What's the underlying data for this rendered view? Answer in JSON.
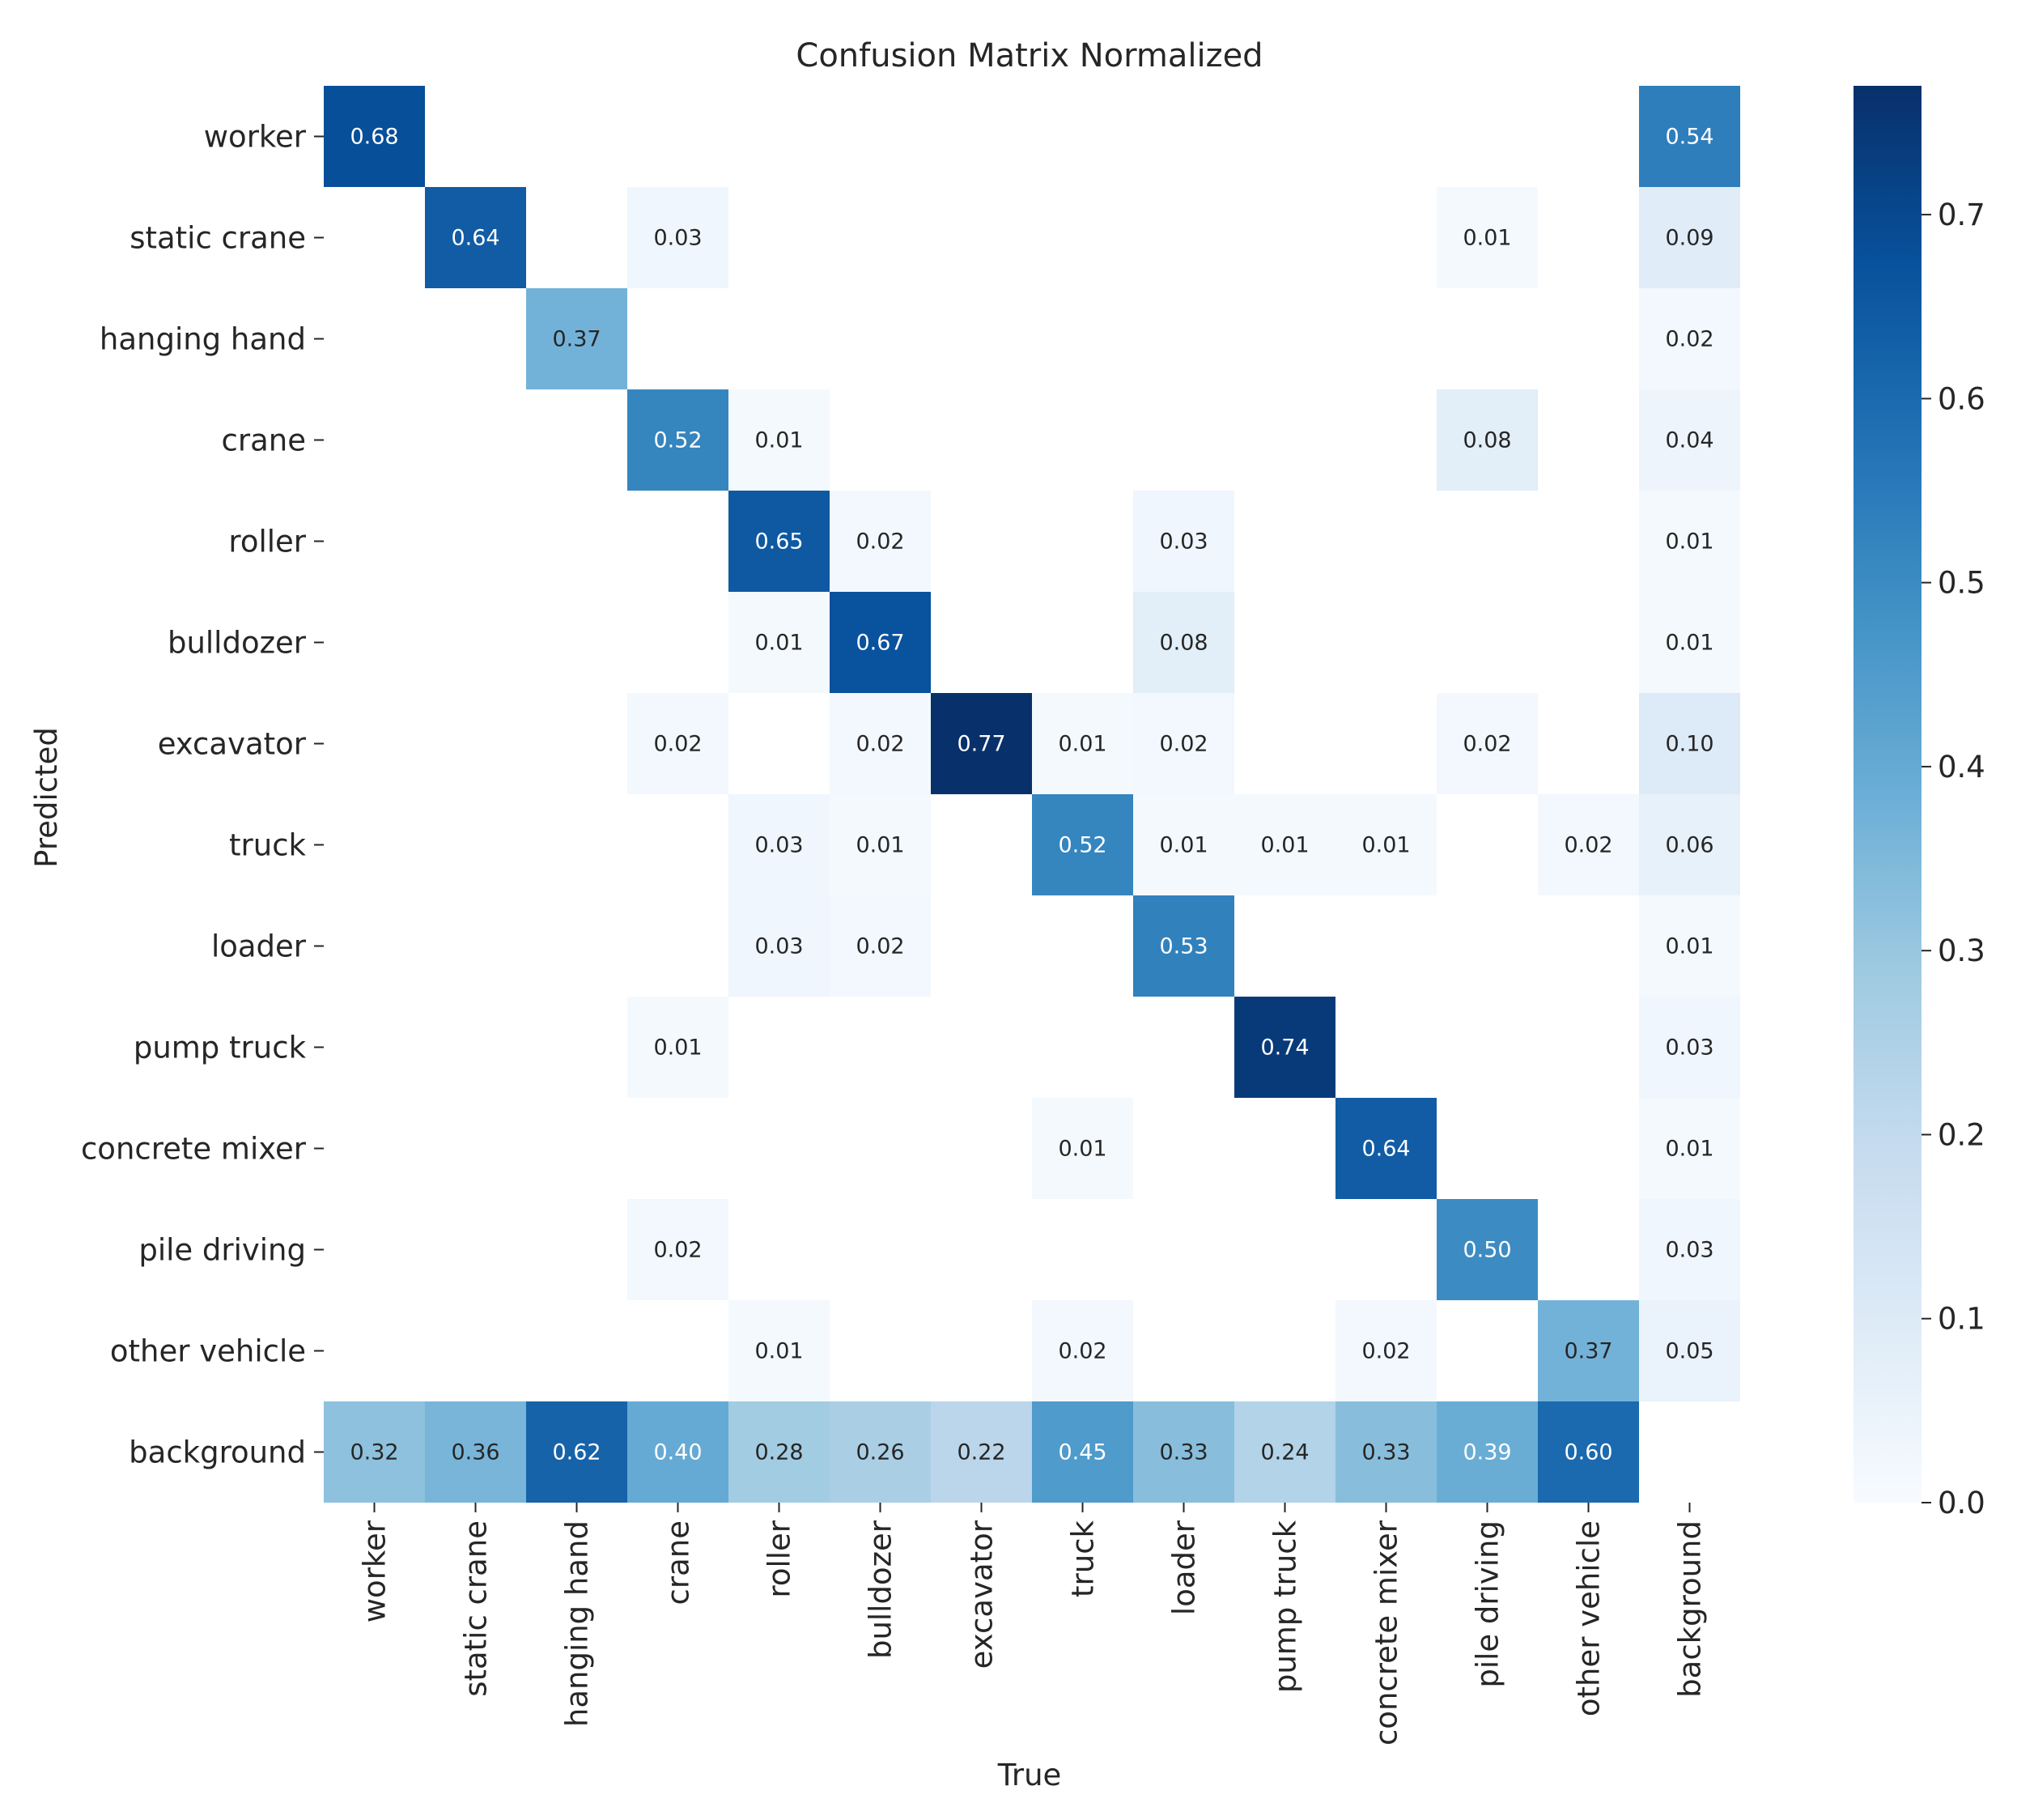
{
  "chart_data": {
    "type": "heatmap",
    "title": "Confusion Matrix Normalized",
    "xlabel": "True",
    "ylabel": "Predicted",
    "x_categories": [
      "worker",
      "static crane",
      "hanging hand",
      "crane",
      "roller",
      "bulldozer",
      "excavator",
      "truck",
      "loader",
      "pump truck",
      "concrete mixer",
      "pile driving",
      "other vehicle",
      "background"
    ],
    "y_categories": [
      "worker",
      "static crane",
      "hanging hand",
      "crane",
      "roller",
      "bulldozer",
      "excavator",
      "truck",
      "loader",
      "pump truck",
      "concrete mixer",
      "pile driving",
      "other vehicle",
      "background"
    ],
    "values": [
      [
        0.68,
        null,
        null,
        null,
        null,
        null,
        null,
        null,
        null,
        null,
        null,
        null,
        null,
        0.54
      ],
      [
        null,
        0.64,
        null,
        0.03,
        null,
        null,
        null,
        null,
        null,
        null,
        null,
        0.01,
        null,
        0.09
      ],
      [
        null,
        null,
        0.37,
        null,
        null,
        null,
        null,
        null,
        null,
        null,
        null,
        null,
        null,
        0.02
      ],
      [
        null,
        null,
        null,
        0.52,
        0.01,
        null,
        null,
        null,
        null,
        null,
        null,
        0.08,
        null,
        0.04
      ],
      [
        null,
        null,
        null,
        null,
        0.65,
        0.02,
        null,
        null,
        0.03,
        null,
        null,
        null,
        null,
        0.01
      ],
      [
        null,
        null,
        null,
        null,
        0.01,
        0.67,
        null,
        null,
        0.08,
        null,
        null,
        null,
        null,
        0.01
      ],
      [
        null,
        null,
        null,
        0.02,
        null,
        0.02,
        0.77,
        0.01,
        0.02,
        null,
        null,
        0.02,
        null,
        0.1
      ],
      [
        null,
        null,
        null,
        null,
        0.03,
        0.01,
        null,
        0.52,
        0.01,
        0.01,
        0.01,
        null,
        0.02,
        0.06
      ],
      [
        null,
        null,
        null,
        null,
        0.03,
        0.02,
        null,
        null,
        0.53,
        null,
        null,
        null,
        null,
        0.01
      ],
      [
        null,
        null,
        null,
        0.01,
        null,
        null,
        null,
        null,
        null,
        0.74,
        null,
        null,
        null,
        0.03
      ],
      [
        null,
        null,
        null,
        null,
        null,
        null,
        null,
        0.01,
        null,
        null,
        0.64,
        null,
        null,
        0.01
      ],
      [
        null,
        null,
        null,
        0.02,
        null,
        null,
        null,
        null,
        null,
        null,
        null,
        0.5,
        null,
        0.03
      ],
      [
        null,
        null,
        null,
        null,
        0.01,
        null,
        null,
        0.02,
        null,
        null,
        0.02,
        null,
        0.37,
        0.05
      ],
      [
        0.32,
        0.36,
        0.62,
        0.4,
        0.28,
        0.26,
        0.22,
        0.45,
        0.33,
        0.24,
        0.33,
        0.39,
        0.6,
        null
      ]
    ],
    "value_range": [
      0,
      0.77
    ],
    "colormap": "Blues",
    "colorbar": {
      "ticks": [
        0.0,
        0.1,
        0.2,
        0.3,
        0.4,
        0.5,
        0.6,
        0.7
      ],
      "tick_labels": [
        "0.0",
        "0.1",
        "0.2",
        "0.3",
        "0.4",
        "0.5",
        "0.6",
        "0.7"
      ]
    }
  }
}
